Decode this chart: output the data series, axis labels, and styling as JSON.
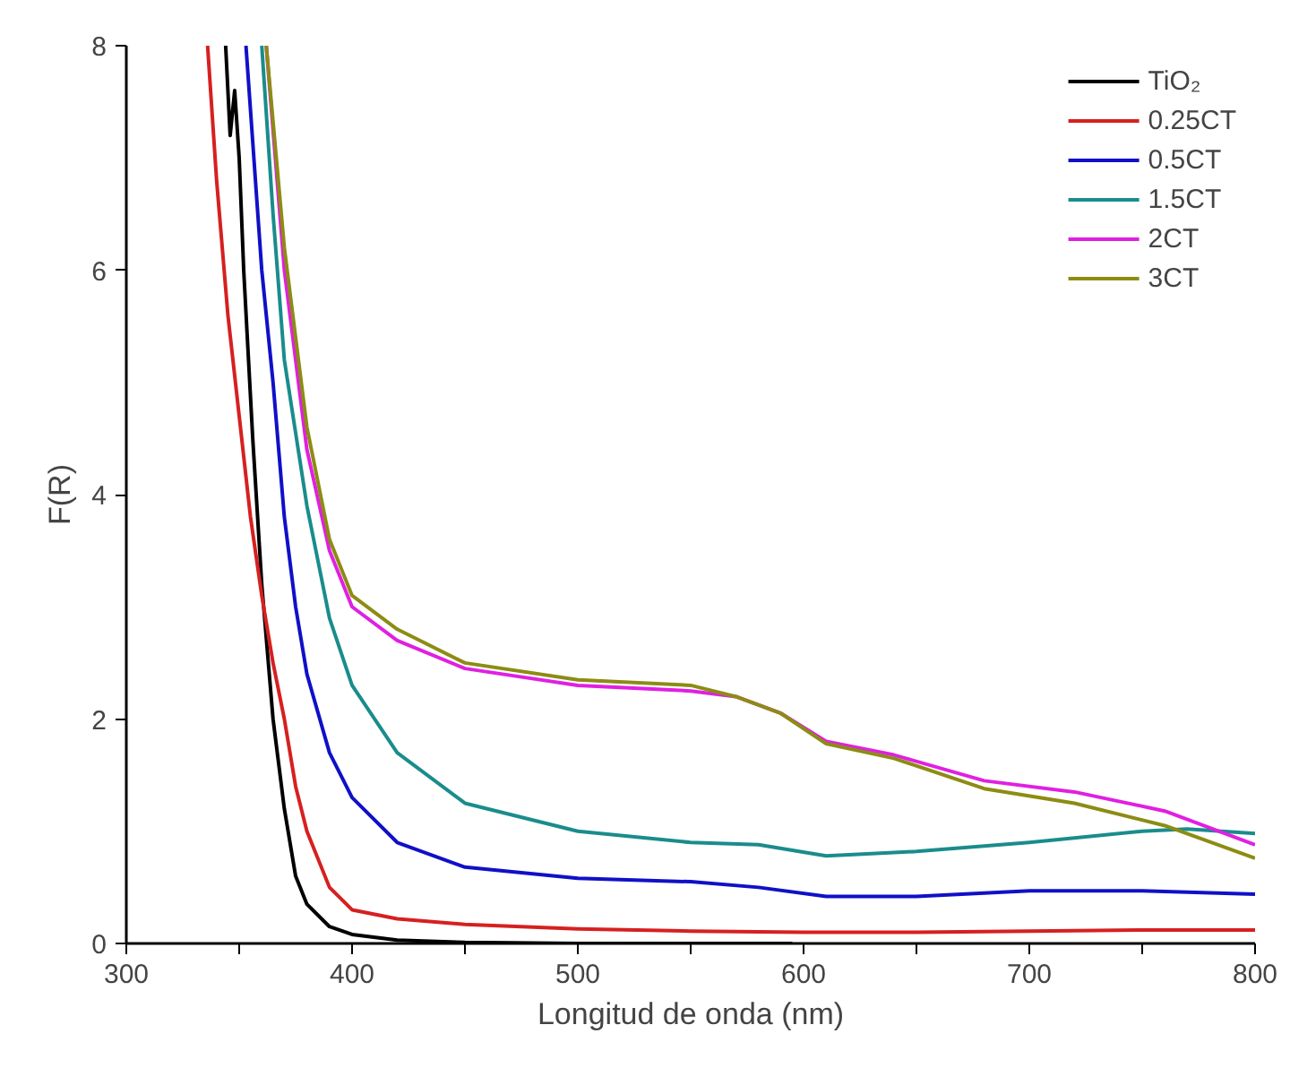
{
  "chart_data": {
    "type": "line",
    "xlabel": "Longitud de onda (nm)",
    "ylabel": "F(R)",
    "xlim": [
      300,
      800
    ],
    "ylim": [
      0,
      8
    ],
    "xticks": [
      300,
      {
        "value": 350,
        "label": null
      },
      400,
      {
        "value": 450,
        "label": null
      },
      500,
      {
        "value": 550,
        "label": null
      },
      600,
      {
        "value": 650,
        "label": null
      },
      700,
      {
        "value": 750,
        "label": null
      },
      800
    ],
    "yticks": [
      0,
      2,
      4,
      6,
      8
    ],
    "grid": false,
    "legend": "top right",
    "line_style": "solid",
    "marker": "none",
    "series": [
      {
        "name": "TiO₂",
        "color": "#000000",
        "x": [
          344,
          346,
          348,
          350,
          352,
          356,
          360,
          365,
          370,
          375,
          380,
          390,
          400,
          420,
          450,
          500,
          550,
          595
        ],
        "values": [
          8,
          7.2,
          7.6,
          7.0,
          6,
          4.5,
          3.2,
          2,
          1.2,
          0.6,
          0.35,
          0.15,
          0.08,
          0.03,
          0.01,
          0,
          0,
          0
        ]
      },
      {
        "name": "0.25CT",
        "color": "#d62020",
        "x": [
          336,
          340,
          345,
          350,
          355,
          360,
          365,
          370,
          375,
          380,
          390,
          400,
          420,
          450,
          500,
          550,
          600,
          650,
          700,
          750,
          800
        ],
        "values": [
          8,
          6.8,
          5.6,
          4.7,
          3.8,
          3.1,
          2.5,
          2.0,
          1.4,
          1.0,
          0.5,
          0.3,
          0.22,
          0.17,
          0.13,
          0.11,
          0.1,
          0.1,
          0.11,
          0.12,
          0.12
        ]
      },
      {
        "name": "0.5CT",
        "color": "#1010c8",
        "x": [
          353,
          360,
          365,
          370,
          375,
          380,
          390,
          400,
          420,
          450,
          500,
          550,
          580,
          610,
          650,
          700,
          750,
          800
        ],
        "values": [
          8,
          6,
          5,
          3.8,
          3,
          2.4,
          1.7,
          1.3,
          0.9,
          0.68,
          0.58,
          0.55,
          0.5,
          0.42,
          0.42,
          0.47,
          0.47,
          0.44
        ]
      },
      {
        "name": "1.5CT",
        "color": "#1a8c8c",
        "x": [
          360,
          365,
          370,
          380,
          390,
          400,
          420,
          450,
          500,
          550,
          580,
          610,
          650,
          700,
          750,
          770,
          800
        ],
        "values": [
          8,
          6.5,
          5.2,
          3.9,
          2.9,
          2.3,
          1.7,
          1.25,
          1.0,
          0.9,
          0.88,
          0.78,
          0.82,
          0.9,
          1.0,
          1.02,
          0.98
        ]
      },
      {
        "name": "2CT",
        "color": "#e020e0",
        "x": [
          362,
          370,
          380,
          390,
          400,
          420,
          450,
          500,
          550,
          570,
          590,
          610,
          640,
          680,
          720,
          760,
          800
        ],
        "values": [
          8,
          6,
          4.4,
          3.5,
          3.0,
          2.7,
          2.45,
          2.3,
          2.25,
          2.2,
          2.05,
          1.8,
          1.68,
          1.45,
          1.35,
          1.18,
          0.88
        ]
      },
      {
        "name": "3CT",
        "color": "#8c8c14",
        "x": [
          362,
          370,
          380,
          390,
          400,
          420,
          450,
          500,
          550,
          570,
          590,
          610,
          640,
          680,
          720,
          760,
          800
        ],
        "values": [
          8,
          6.2,
          4.6,
          3.6,
          3.1,
          2.8,
          2.5,
          2.35,
          2.3,
          2.2,
          2.05,
          1.78,
          1.65,
          1.38,
          1.25,
          1.05,
          0.76
        ]
      }
    ]
  }
}
